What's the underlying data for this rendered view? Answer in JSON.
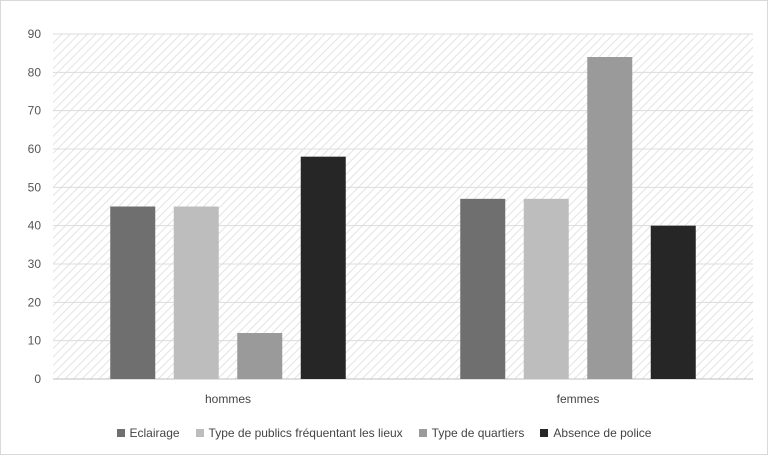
{
  "chart_data": {
    "type": "bar",
    "title": "",
    "xlabel": "",
    "ylabel": "",
    "categories": [
      "hommes",
      "femmes"
    ],
    "series": [
      {
        "name": "Eclairage",
        "values": [
          45,
          47
        ],
        "color": "#6f6f6f"
      },
      {
        "name": "Type de publics fréquentant les lieux",
        "values": [
          45,
          47
        ],
        "color": "#bdbdbd"
      },
      {
        "name": "Type de quartiers",
        "values": [
          12,
          84
        ],
        "color": "#9a9a9a"
      },
      {
        "name": "Absence de police",
        "values": [
          58,
          40
        ],
        "color": "#262626"
      }
    ],
    "ylim": [
      0,
      90
    ],
    "yticks": [
      0,
      10,
      20,
      30,
      40,
      50,
      60,
      70,
      80,
      90
    ],
    "grid": true,
    "legend_position": "bottom"
  }
}
